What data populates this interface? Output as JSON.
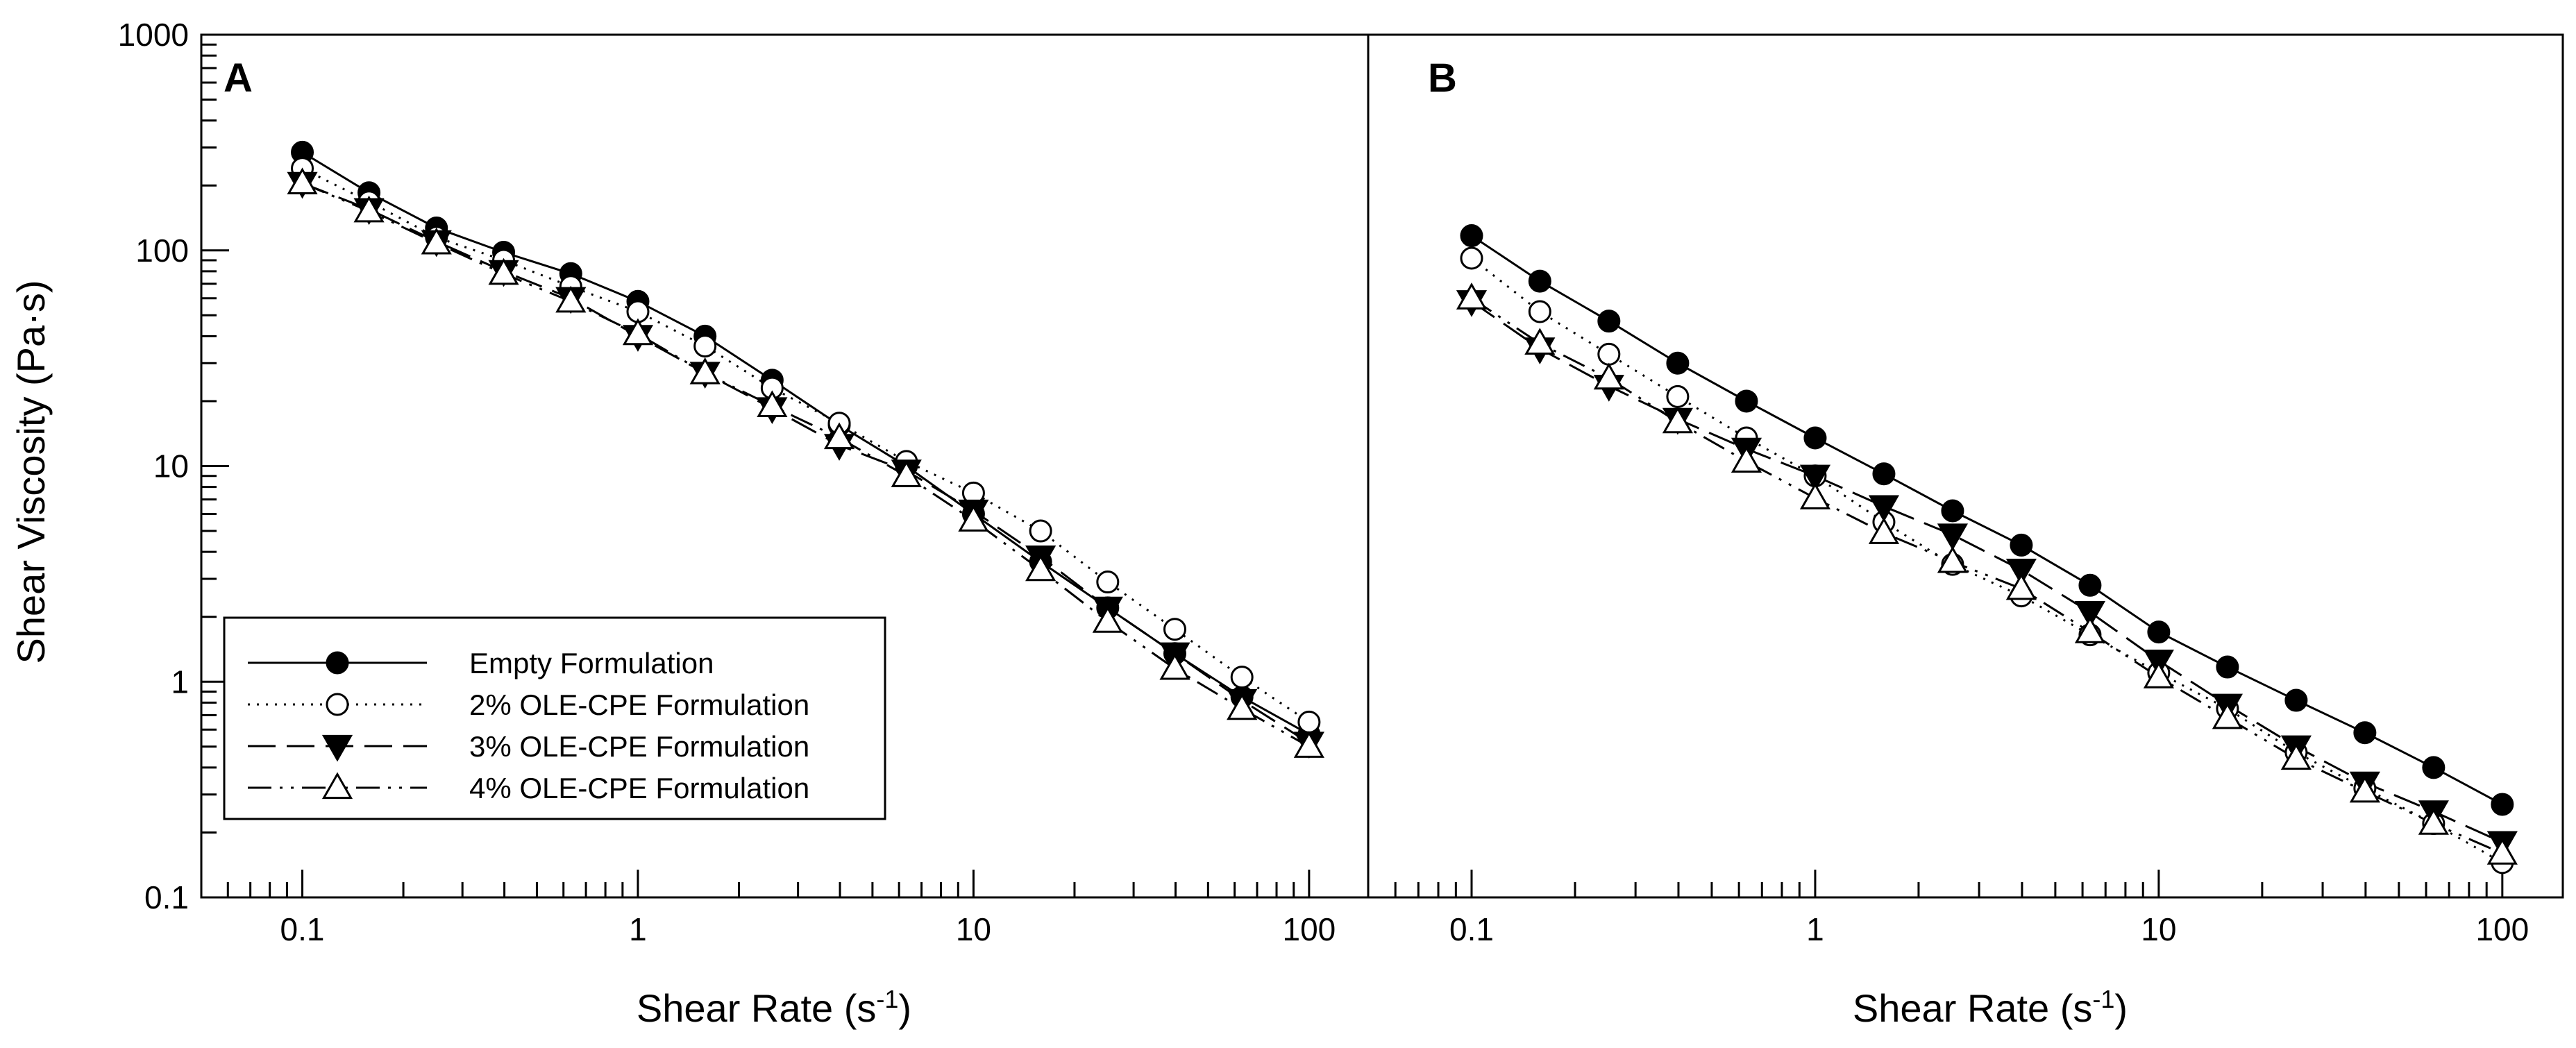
{
  "chart_data": {
    "type": "line",
    "x_scale": "log",
    "y_scale": "log",
    "ylabel": "Shear Viscosity (Pa·s)",
    "xlabel_prefix": "Shear Rate (s",
    "xlabel_sup": "-1",
    "xlabel_suffix": ")",
    "xlim": [
      0.05,
      150
    ],
    "ylim": [
      0.1,
      1000
    ],
    "y_tick_labels": [
      "0.1",
      "1",
      "10",
      "100",
      "1000"
    ],
    "y_tick_values": [
      0.1,
      1,
      10,
      100,
      1000
    ],
    "x_tick_labels": [
      "0.1",
      "1",
      "10",
      "100"
    ],
    "x_tick_values": [
      0.1,
      1,
      10,
      100
    ],
    "x": [
      0.1,
      0.158,
      0.251,
      0.398,
      0.631,
      1,
      1.585,
      2.512,
      3.981,
      6.31,
      10,
      15.85,
      25.12,
      39.81,
      63.1,
      100
    ],
    "legend": [
      {
        "label": "Empty Formulation",
        "marker": "filled-circle",
        "line": "solid"
      },
      {
        "label": "2% OLE-CPE Formulation",
        "marker": "open-circle",
        "line": "dotted"
      },
      {
        "label": "3% OLE-CPE Formulation",
        "marker": "filled-triangle-down",
        "line": "dashed"
      },
      {
        "label": "4% OLE-CPE Formulation",
        "marker": "open-triangle-up",
        "line": "dash-dot-dot"
      }
    ],
    "panels": [
      {
        "label": "A",
        "series": [
          {
            "name": "Empty Formulation",
            "values": [
              285,
              185,
              127,
              98,
              78,
              58,
              40,
              25,
              15.5,
              10,
              6,
              3.6,
              2.2,
              1.35,
              0.85,
              0.57
            ]
          },
          {
            "name": "2% OLE-CPE Formulation",
            "values": [
              240,
              168,
              115,
              90,
              68,
              52,
              36,
              23,
              15.8,
              10.5,
              7.5,
              5,
              2.9,
              1.75,
              1.05,
              0.65
            ]
          },
          {
            "name": "3% OLE-CPE Formulation",
            "values": [
              205,
              155,
              110,
              80,
              60,
              40,
              27,
              18.5,
              12.5,
              9.5,
              6.2,
              3.8,
              2.2,
              1.35,
              0.82,
              0.52
            ]
          },
          {
            "name": "4% OLE-CPE Formulation",
            "values": [
              205,
              152,
              108,
              78,
              58,
              41,
              27,
              19,
              13.5,
              9,
              5.6,
              3.3,
              1.9,
              1.15,
              0.75,
              0.5
            ]
          }
        ]
      },
      {
        "label": "B",
        "series": [
          {
            "name": "Empty Formulation",
            "values": [
              117,
              72,
              47,
              30,
              20,
              13.5,
              9.2,
              6.2,
              4.3,
              2.8,
              1.7,
              1.17,
              0.82,
              0.58,
              0.4,
              0.27
            ]
          },
          {
            "name": "2% OLE-CPE Formulation",
            "values": [
              92,
              52,
              33,
              21,
              13.5,
              9,
              5.5,
              3.5,
              2.5,
              1.65,
              1.1,
              0.75,
              0.47,
              0.32,
              0.22,
              0.145
            ]
          },
          {
            "name": "3% OLE-CPE Formulation",
            "values": [
              58,
              35,
              23.5,
              16.5,
              12,
              9,
              6.5,
              4.8,
              3.3,
              2.1,
              1.25,
              0.78,
              0.5,
              0.34,
              0.25,
              0.18
            ]
          },
          {
            "name": "4% OLE-CPE Formulation",
            "values": [
              60,
              37,
              25.5,
              16,
              10.5,
              7.1,
              4.9,
              3.6,
              2.7,
              1.7,
              1.05,
              0.68,
              0.44,
              0.31,
              0.22,
              0.16
            ]
          }
        ]
      }
    ]
  }
}
